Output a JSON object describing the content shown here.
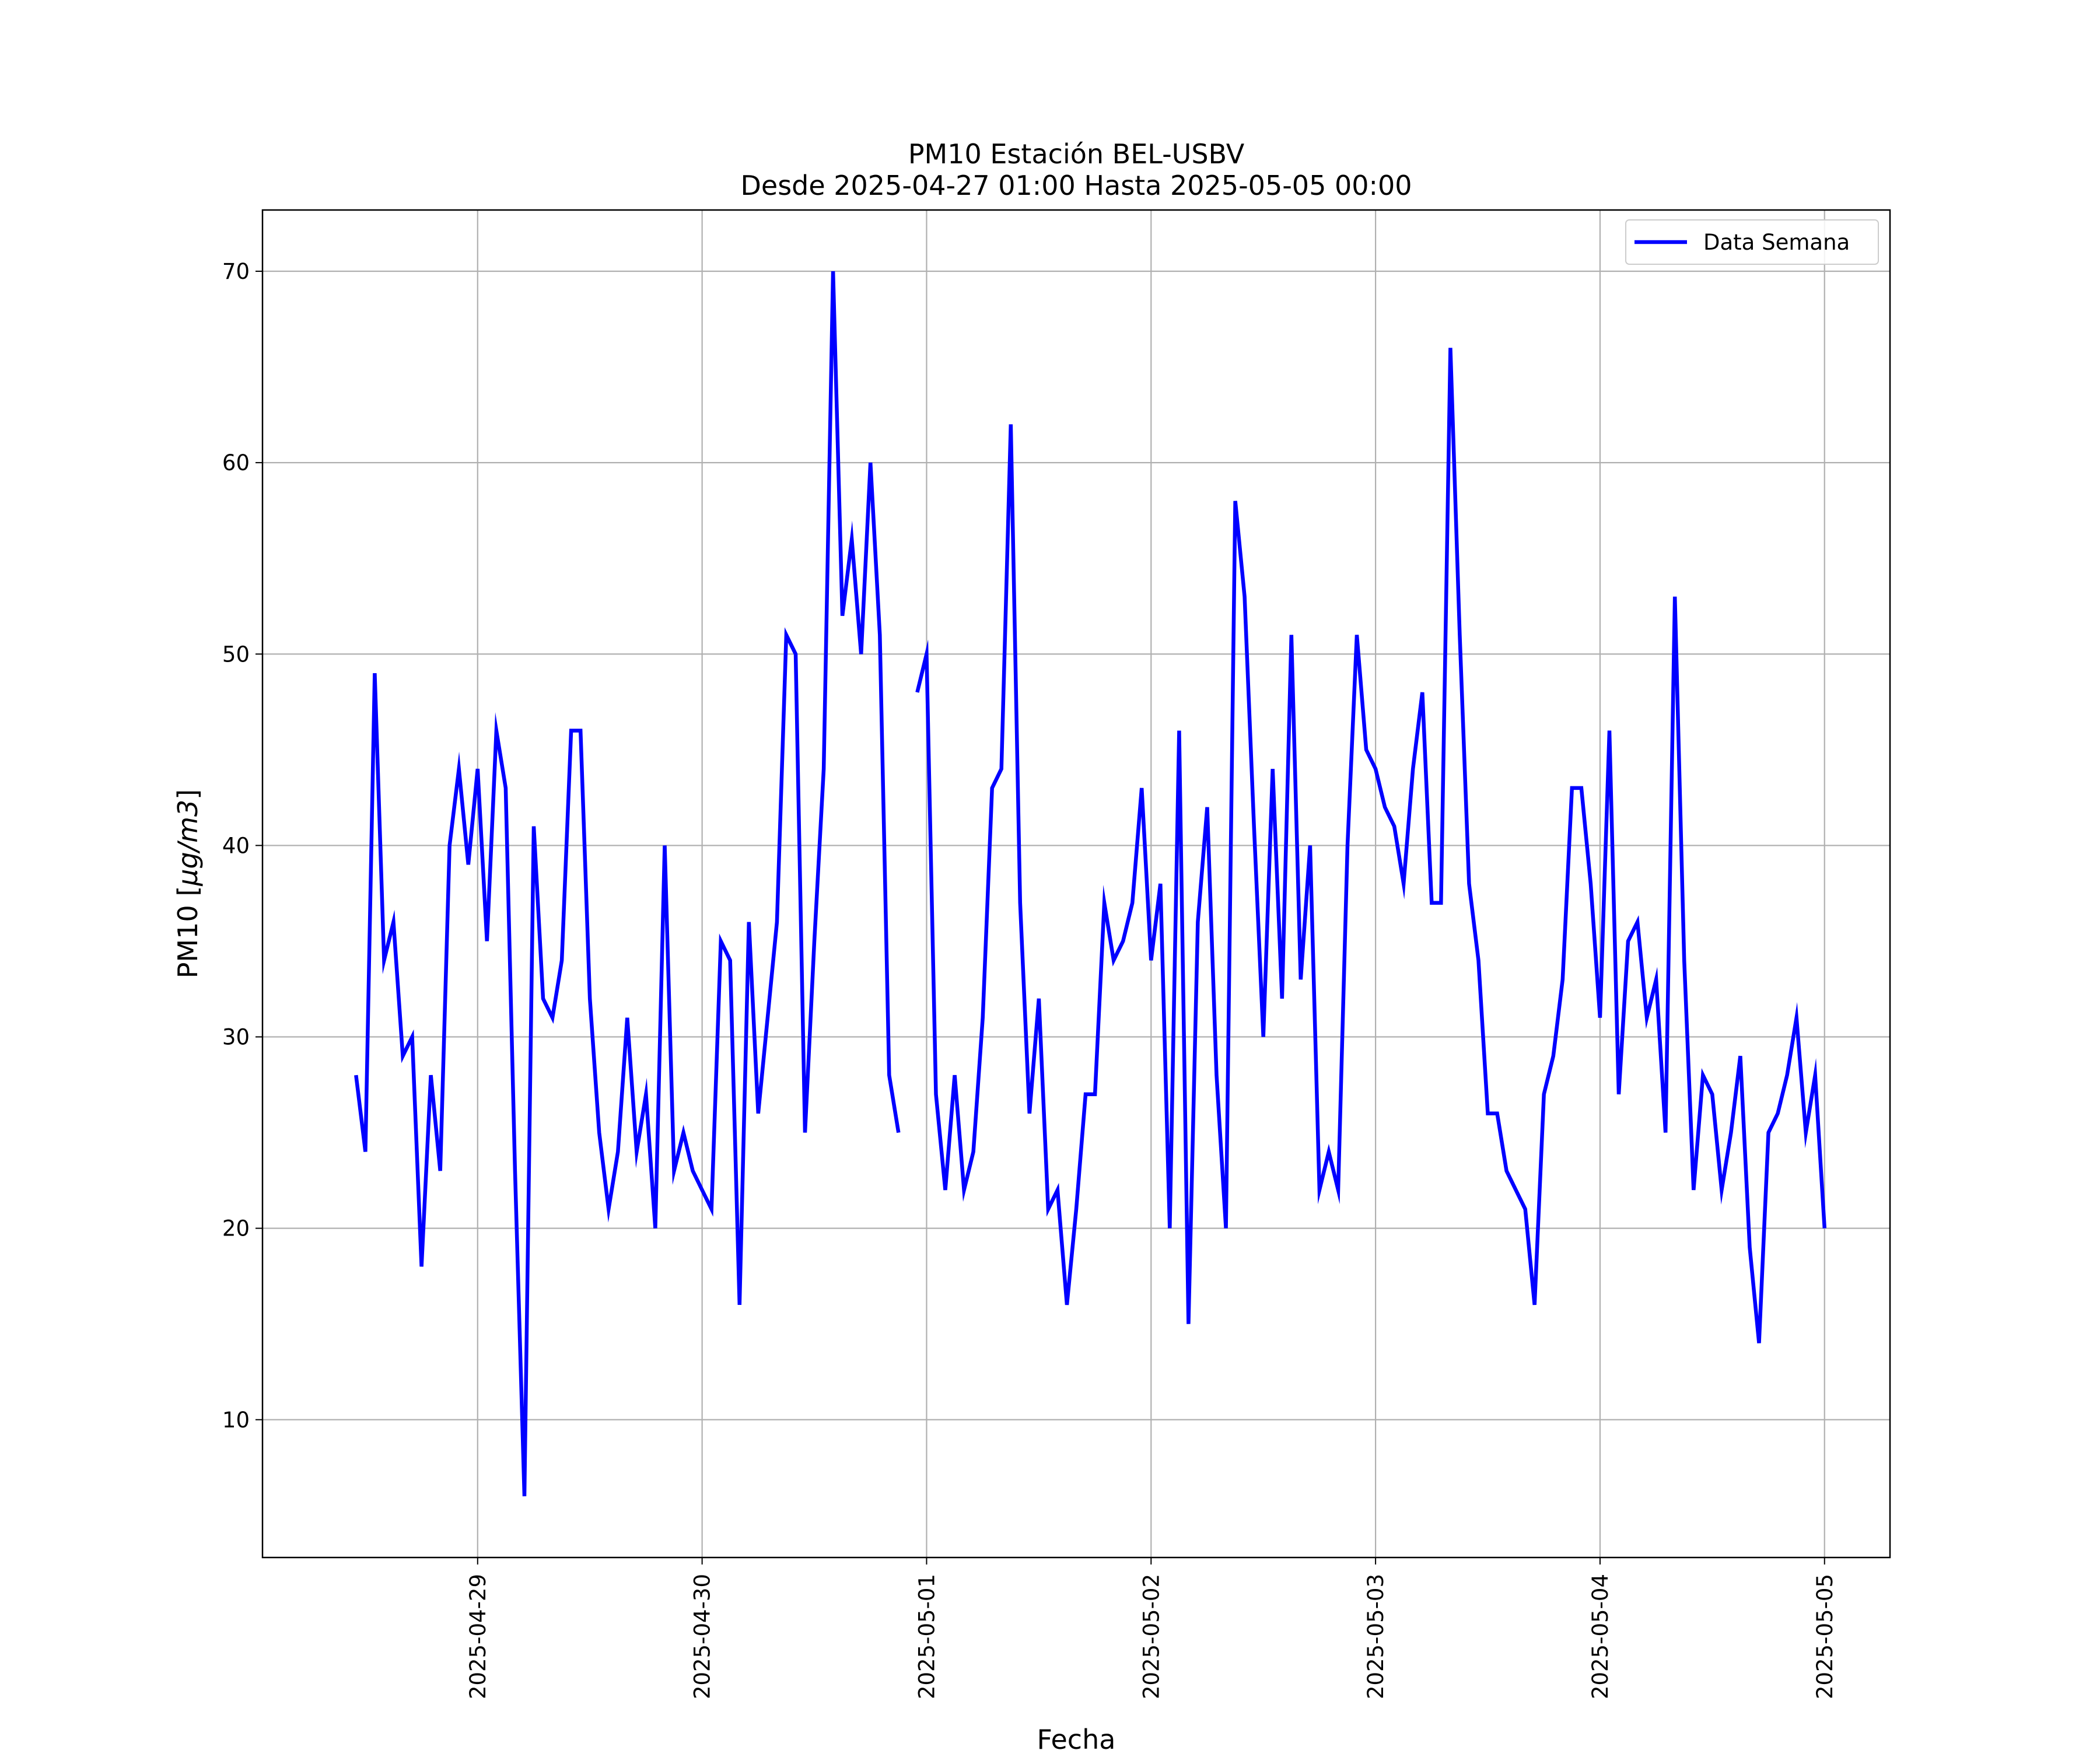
{
  "chart_data": {
    "type": "line",
    "title": "PM10 Estación BEL-USBV",
    "subtitle": "Desde 2025-04-27 01:00 Hasta 2025-05-05 00:00",
    "xlabel": "Fecha",
    "ylabel_prefix": "PM10 [",
    "ylabel_math": "μg/m3",
    "ylabel_suffix": "]",
    "xlim": [
      "2025-04-28 01:00",
      "2025-05-05 07:00"
    ],
    "ylim": [
      2.8,
      73.2
    ],
    "grid": true,
    "legend_position": "top-right",
    "x_ticks": [
      {
        "x": "2025-04-29 00:00",
        "label": "2025-04-29"
      },
      {
        "x": "2025-04-30 00:00",
        "label": "2025-04-30"
      },
      {
        "x": "2025-05-01 00:00",
        "label": "2025-05-01"
      },
      {
        "x": "2025-05-02 00:00",
        "label": "2025-05-02"
      },
      {
        "x": "2025-05-03 00:00",
        "label": "2025-05-03"
      },
      {
        "x": "2025-05-04 00:00",
        "label": "2025-05-04"
      },
      {
        "x": "2025-05-05 00:00",
        "label": "2025-05-05"
      }
    ],
    "y_ticks": [
      10,
      20,
      30,
      40,
      50,
      60,
      70
    ],
    "series": [
      {
        "name": "Data Semana",
        "color": "#0000ff",
        "segments": [
          {
            "start": "2025-04-28 11:00",
            "step_hours": 1,
            "values": [
              28,
              24,
              49,
              34,
              36,
              29,
              30,
              18,
              28,
              23,
              40,
              44,
              39,
              44,
              35,
              46,
              43,
              23,
              6,
              41,
              32,
              31,
              34,
              46,
              46,
              32,
              25,
              21,
              24,
              31,
              24,
              27,
              20,
              40,
              23,
              25,
              23,
              22,
              21,
              35,
              34,
              16,
              36,
              26,
              31,
              36,
              51,
              50,
              25,
              35,
              44,
              70,
              52,
              56,
              50,
              60,
              51,
              28,
              25
            ]
          },
          {
            "start": "2025-04-30 23:00",
            "step_hours": 1,
            "values": [
              48,
              50,
              27,
              22,
              28,
              22,
              24,
              31,
              43,
              44,
              62,
              37,
              26,
              32,
              21,
              22,
              16,
              21,
              27,
              27,
              37,
              34,
              35,
              37,
              43,
              34,
              38,
              20,
              46,
              15,
              36,
              42,
              28,
              20,
              58,
              53,
              41,
              30,
              44,
              32,
              51,
              33,
              40,
              22,
              24,
              22,
              40,
              51,
              45,
              44,
              42,
              41,
              38,
              44,
              48,
              37,
              37,
              66,
              51,
              38,
              34,
              26,
              26,
              23,
              22,
              21,
              16,
              27,
              29,
              33,
              43,
              43,
              38,
              31,
              46,
              27,
              35,
              36,
              31,
              33,
              25,
              53,
              34,
              22,
              28,
              27,
              22,
              25,
              29,
              19,
              14,
              25,
              26,
              28,
              31,
              25,
              28,
              20
            ]
          }
        ]
      }
    ]
  }
}
